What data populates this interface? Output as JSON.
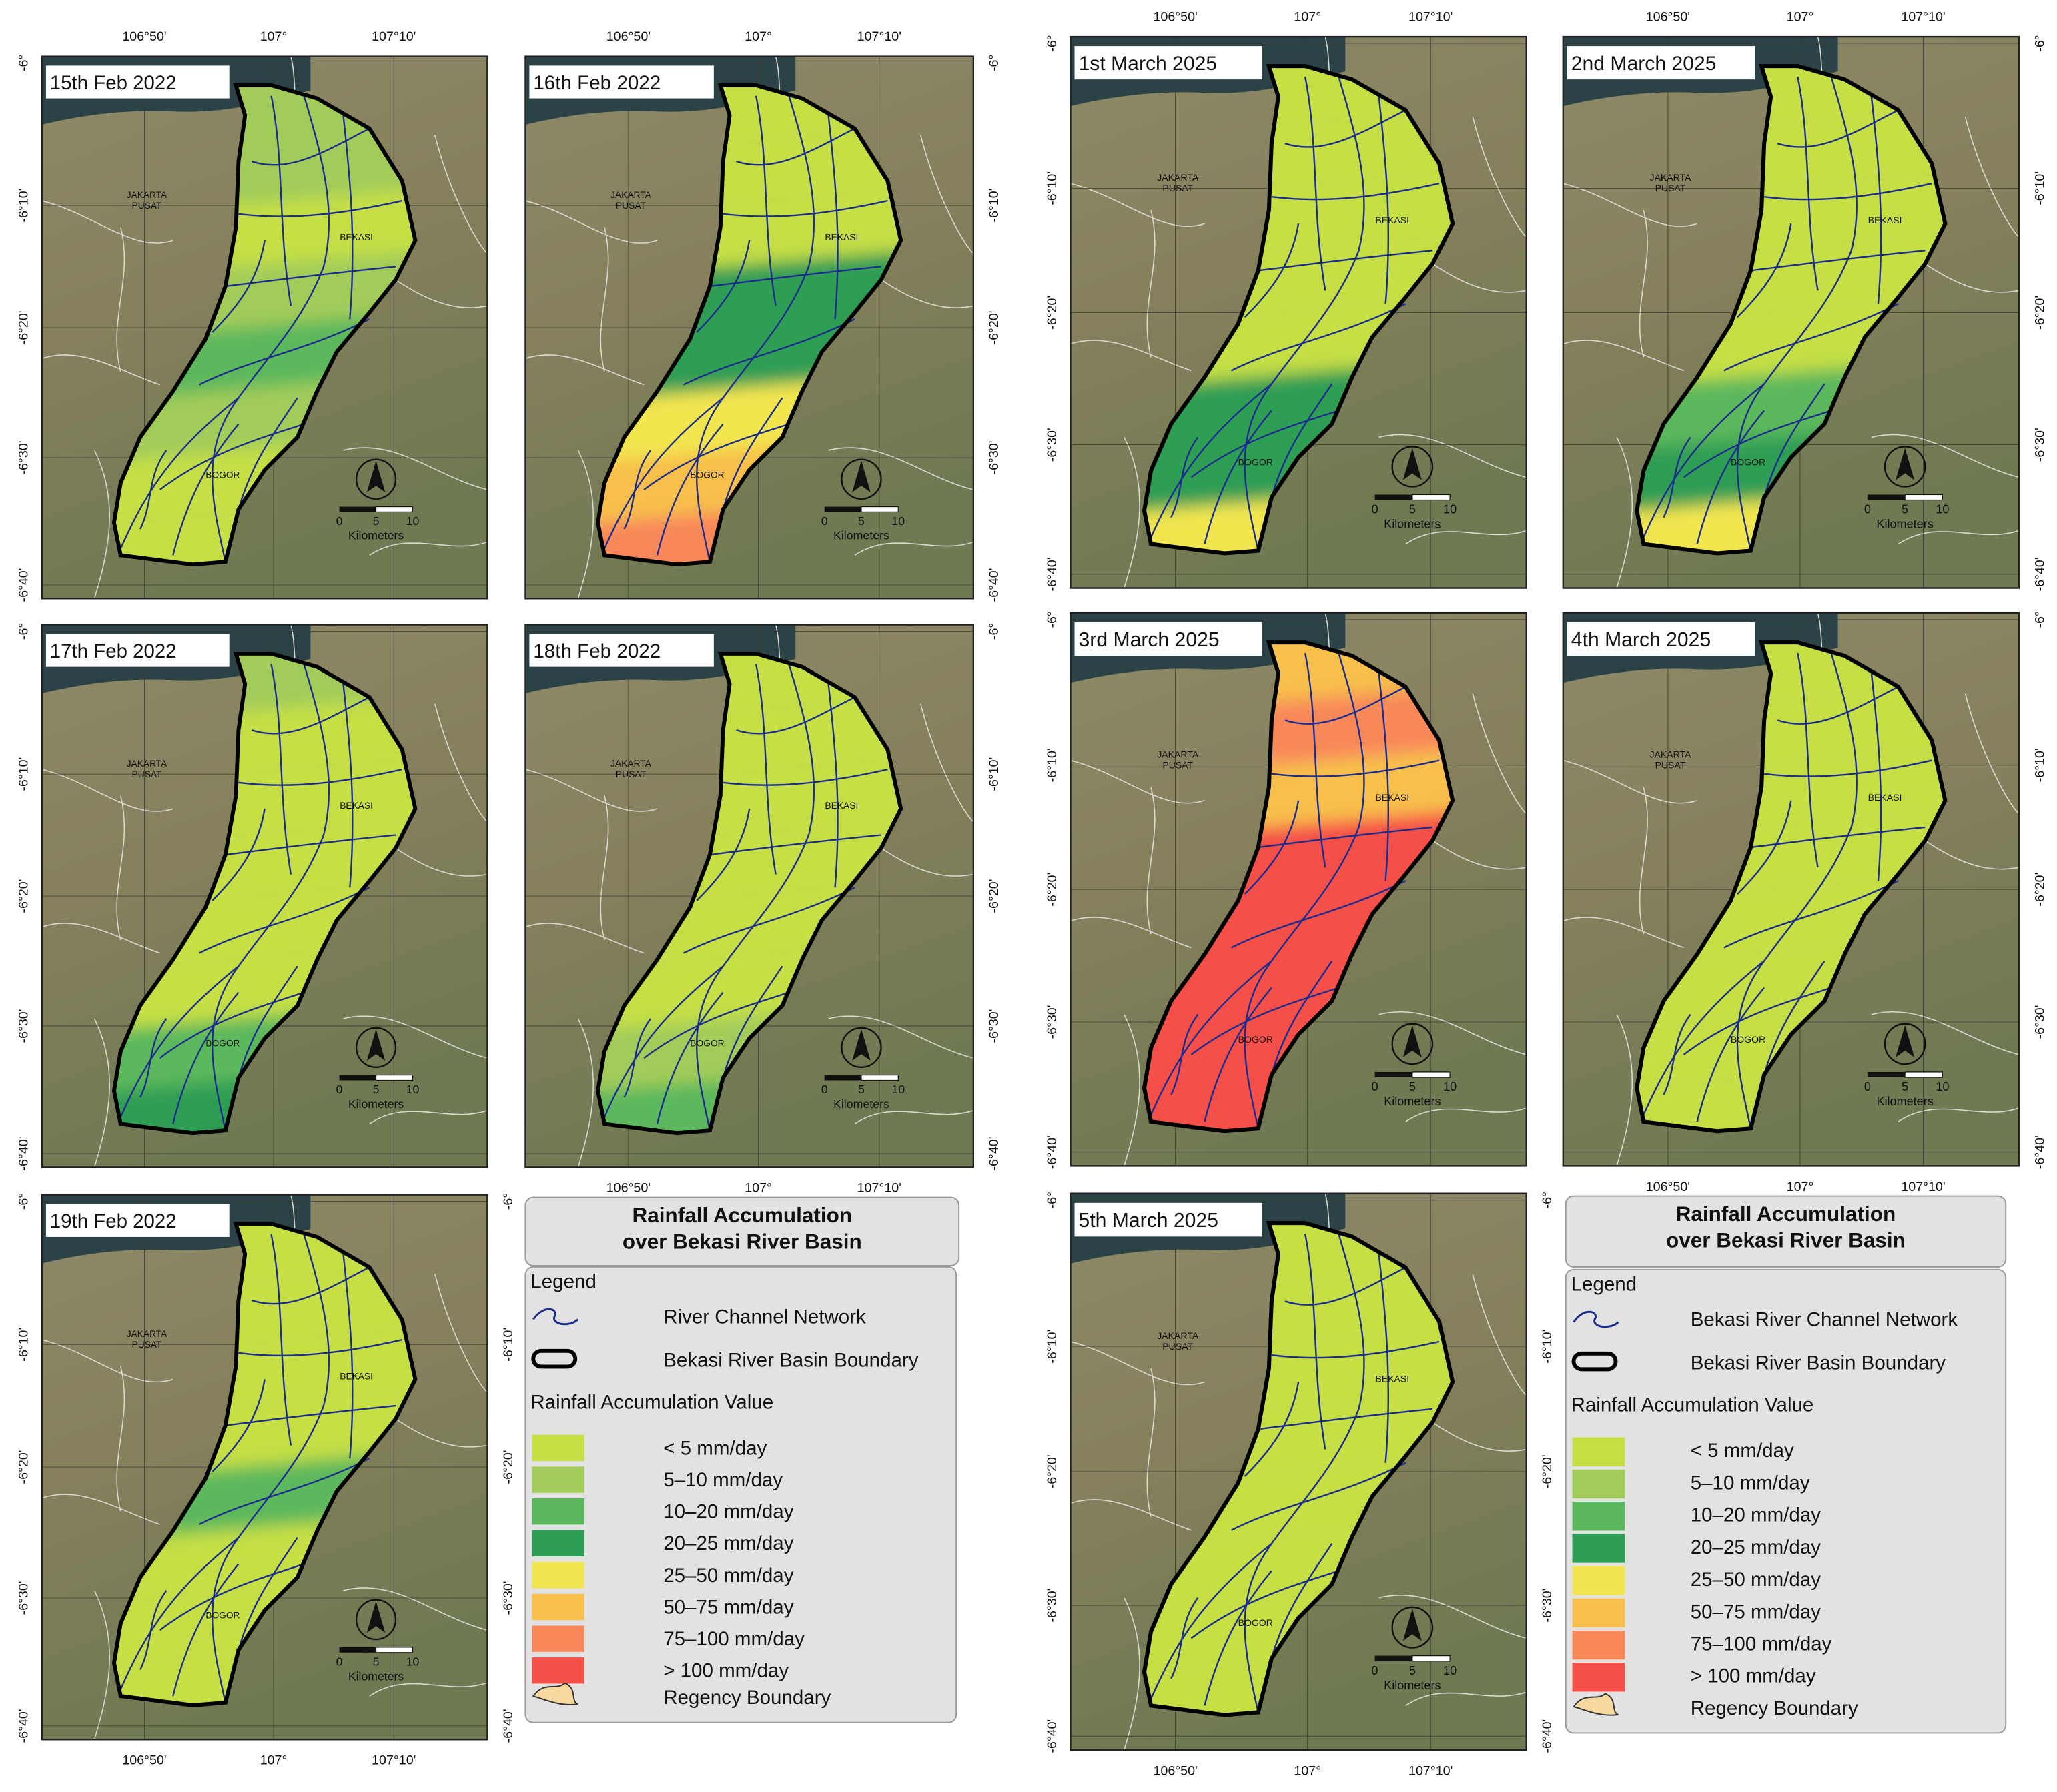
{
  "panels": [
    {
      "title": "15th Feb 2022",
      "zones": [
        "#a2cc5a",
        "#a2cc5a",
        "#c5df45",
        "#a2cc5a",
        "#5cb85c",
        "#a2cc5a",
        "#c5df45",
        "#c5df45"
      ]
    },
    {
      "title": "16th Feb 2022",
      "zones": [
        "#c5df45",
        "#c5df45",
        "#c5df45",
        "#2e9e55",
        "#2e9e55",
        "#f2e650",
        "#f8bf4c",
        "#f8885a"
      ]
    },
    {
      "title": "17th Feb 2022",
      "zones": [
        "#a2cc5a",
        "#c5df45",
        "#c5df45",
        "#c5df45",
        "#c5df45",
        "#c5df45",
        "#5cb85c",
        "#2e9e55"
      ]
    },
    {
      "title": "18th Feb 2022",
      "zones": [
        "#c5df45",
        "#c5df45",
        "#c5df45",
        "#c5df45",
        "#c5df45",
        "#c5df45",
        "#a2cc5a",
        "#5cb85c"
      ]
    },
    {
      "title": "19th Feb 2022",
      "zones": [
        "#c5df45",
        "#c5df45",
        "#c5df45",
        "#c5df45",
        "#5cb85c",
        "#c5df45",
        "#c5df45",
        "#c5df45"
      ]
    },
    {
      "title": "1st March 2025",
      "zones": [
        "#c5df45",
        "#c5df45",
        "#c5df45",
        "#c5df45",
        "#c5df45",
        "#2e9e55",
        "#2e9e55",
        "#f2e650"
      ]
    },
    {
      "title": "2nd March 2025",
      "zones": [
        "#c5df45",
        "#c5df45",
        "#c5df45",
        "#c5df45",
        "#c5df45",
        "#5cb85c",
        "#2e9e55",
        "#f2e650"
      ]
    },
    {
      "title": "3rd March 2025",
      "zones": [
        "#f8bf4c",
        "#f8885a",
        "#f8bf4c",
        "#f55048",
        "#f55048",
        "#f55048",
        "#f55048",
        "#f55048"
      ]
    },
    {
      "title": "4th March 2025",
      "zones": [
        "#c5df45",
        "#c5df45",
        "#c5df45",
        "#c5df45",
        "#c5df45",
        "#c5df45",
        "#c5df45",
        "#c5df45"
      ]
    },
    {
      "title": "5th March 2025",
      "zones": [
        "#c5df45",
        "#c5df45",
        "#c5df45",
        "#c5df45",
        "#c5df45",
        "#c5df45",
        "#c5df45",
        "#c5df45"
      ]
    }
  ],
  "map_labels": {
    "jakarta": [
      "JAKARTA",
      "PUSAT"
    ],
    "bekasi": "BEKASI",
    "bogor": "BOGOR"
  },
  "scale_bar": {
    "ticks": [
      0,
      5,
      10
    ],
    "unit": "Kilometers"
  },
  "lon_ticks": [
    "106°50'",
    "107°",
    "107°10'"
  ],
  "lat_ticks": [
    "-6°",
    "-6°10'",
    "-6°20'",
    "-6°30'",
    "-6°40'"
  ],
  "legends": [
    {
      "title": [
        "Rainfall Accumulation",
        "over Bekasi River Basin"
      ],
      "heading": "Legend",
      "items": [
        "River Channel Network",
        "Bekasi River Basin Boundary"
      ],
      "class_heading": "Rainfall Accumulation Value",
      "classes": [
        {
          "label": "< 5 mm/day",
          "color": "#c5df45"
        },
        {
          "label": "5–10 mm/day",
          "color": "#a2cc5a"
        },
        {
          "label": "10–20 mm/day",
          "color": "#5cb85c"
        },
        {
          "label": "20–25 mm/day",
          "color": "#2e9e55"
        },
        {
          "label": "25–50 mm/day",
          "color": "#f2e650"
        },
        {
          "label": "50–75 mm/day",
          "color": "#f8bf4c"
        },
        {
          "label": "75–100 mm/day",
          "color": "#f8885a"
        },
        {
          "label": "> 100 mm/day",
          "color": "#f55048"
        }
      ],
      "regency": "Regency Boundary"
    },
    {
      "title": [
        "Rainfall Accumulation",
        "over Bekasi River Basin"
      ],
      "heading": "Legend",
      "items": [
        "Bekasi River Channel Network",
        "Bekasi River Basin Boundary"
      ],
      "class_heading": "Rainfall Accumulation Value",
      "classes": [
        {
          "label": "< 5 mm/day",
          "color": "#c5df45"
        },
        {
          "label": "5–10 mm/day",
          "color": "#a2cc5a"
        },
        {
          "label": "10–20 mm/day",
          "color": "#5cb85c"
        },
        {
          "label": "20–25 mm/day",
          "color": "#2e9e55"
        },
        {
          "label": "25–50 mm/day",
          "color": "#f2e650"
        },
        {
          "label": "50–75 mm/day",
          "color": "#f8bf4c"
        },
        {
          "label": "75–100 mm/day",
          "color": "#f8885a"
        },
        {
          "label": "> 100 mm/day",
          "color": "#f55048"
        }
      ],
      "regency": "Regency Boundary"
    }
  ]
}
